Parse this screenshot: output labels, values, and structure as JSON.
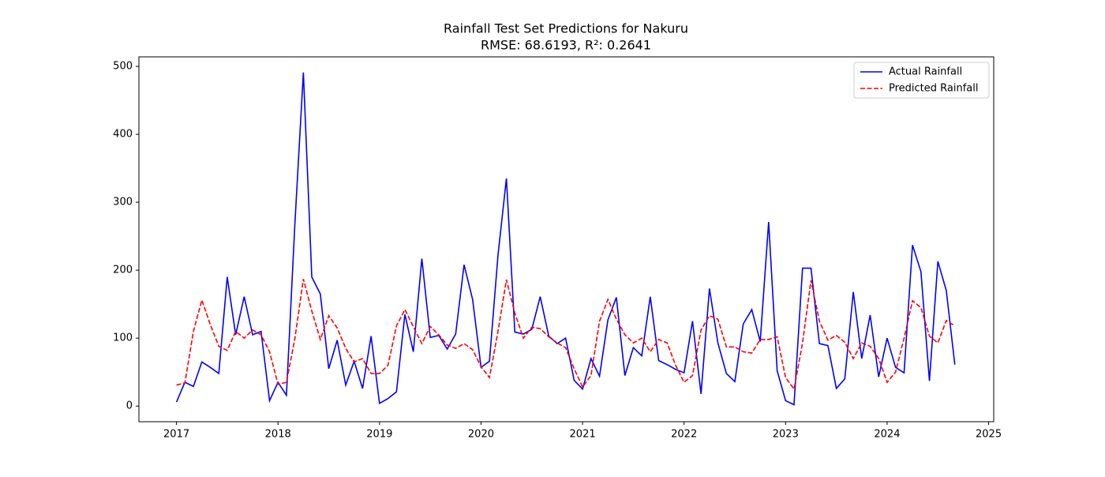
{
  "chart_data": {
    "type": "line",
    "title": "Rainfall Test Set Predictions for Nakuru",
    "subtitle": "RMSE: 68.6193, R²: 0.2641",
    "x": [
      2017,
      2017.083,
      2017.167,
      2017.25,
      2017.333,
      2017.417,
      2017.5,
      2017.583,
      2017.667,
      2017.75,
      2017.833,
      2017.917,
      2018,
      2018.083,
      2018.167,
      2018.25,
      2018.333,
      2018.417,
      2018.5,
      2018.583,
      2018.667,
      2018.75,
      2018.833,
      2018.917,
      2019,
      2019.083,
      2019.167,
      2019.25,
      2019.333,
      2019.417,
      2019.5,
      2019.583,
      2019.667,
      2019.75,
      2019.833,
      2019.917,
      2020,
      2020.083,
      2020.167,
      2020.25,
      2020.333,
      2020.417,
      2020.5,
      2020.583,
      2020.667,
      2020.75,
      2020.833,
      2020.917,
      2021,
      2021.083,
      2021.167,
      2021.25,
      2021.333,
      2021.417,
      2021.5,
      2021.583,
      2021.667,
      2021.75,
      2021.833,
      2021.917,
      2022,
      2022.083,
      2022.167,
      2022.25,
      2022.333,
      2022.417,
      2022.5,
      2022.583,
      2022.667,
      2022.75,
      2022.833,
      2022.917,
      2023,
      2023.083,
      2023.167,
      2023.25,
      2023.333,
      2023.417,
      2023.5,
      2023.583,
      2023.667,
      2023.75,
      2023.833,
      2023.917,
      2024,
      2024.083,
      2024.167,
      2024.25,
      2024.333,
      2024.417,
      2024.5,
      2024.583,
      2024.667
    ],
    "series": [
      {
        "name": "Actual Rainfall",
        "color": "#0000ff",
        "linestyle": "solid",
        "values": [
          6,
          35,
          29,
          65,
          57,
          48,
          190,
          105,
          161,
          105,
          110,
          8,
          35,
          16,
          270,
          491,
          190,
          165,
          55,
          97,
          31,
          66,
          26,
          103,
          4,
          11,
          21,
          135,
          80,
          217,
          101,
          104,
          84,
          106,
          208,
          157,
          57,
          66,
          222,
          335,
          109,
          106,
          113,
          161,
          103,
          92,
          100,
          38,
          25,
          70,
          44,
          127,
          160,
          45,
          86,
          74,
          161,
          67,
          61,
          54,
          49,
          125,
          18,
          173,
          93,
          48,
          36,
          121,
          142,
          95,
          271,
          52,
          8,
          2,
          203,
          203,
          92,
          89,
          26,
          40,
          168,
          70,
          134,
          43,
          100,
          57,
          49,
          237,
          198,
          37,
          213,
          170,
          61
        ]
      },
      {
        "name": "Predicted Rainfall",
        "color": "#ff0000",
        "linestyle": "dashed",
        "values": [
          31,
          34,
          110,
          156,
          120,
          88,
          82,
          110,
          100,
          112,
          105,
          80,
          32,
          35,
          100,
          187,
          140,
          98,
          133,
          115,
          85,
          65,
          70,
          48,
          48,
          60,
          118,
          142,
          117,
          92,
          117,
          105,
          90,
          85,
          92,
          83,
          58,
          42,
          110,
          186,
          137,
          100,
          116,
          114,
          102,
          93,
          86,
          55,
          28,
          45,
          125,
          157,
          128,
          105,
          93,
          100,
          80,
          98,
          93,
          60,
          35,
          45,
          112,
          133,
          128,
          87,
          87,
          80,
          78,
          98,
          98,
          102,
          42,
          25,
          93,
          185,
          125,
          97,
          104,
          94,
          70,
          93,
          88,
          70,
          35,
          50,
          100,
          155,
          145,
          103,
          93,
          126,
          118
        ]
      }
    ],
    "xlim": [
      2016.63,
      2025.05
    ],
    "xticks": [
      2017,
      2018,
      2019,
      2020,
      2021,
      2022,
      2023,
      2024,
      2025
    ],
    "ylim": [
      -23,
      514
    ],
    "yticks": [
      0,
      100,
      200,
      300,
      400,
      500
    ],
    "grid": false,
    "legend": "upper right"
  }
}
